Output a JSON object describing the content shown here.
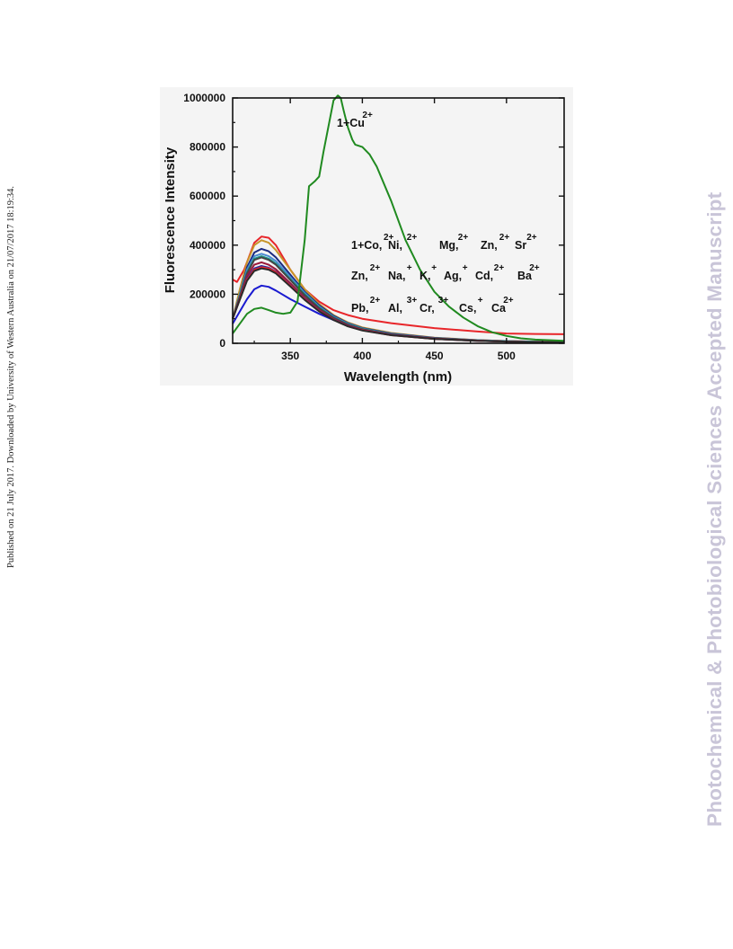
{
  "side_note": "Published on 21 July 2017. Downloaded by University of Western Australia on 21/07/2017 18:19:34.",
  "watermark": {
    "text": "Photochemical & Photobiological Sciences Accepted Manuscript",
    "color": "#c9c5d8"
  },
  "chart_data": {
    "type": "line",
    "title": "",
    "xlabel": "Wavelength (nm)",
    "ylabel": "Fluorescence Intensity",
    "xlim": [
      310,
      540
    ],
    "ylim": [
      0,
      1000000
    ],
    "xticks": [
      350,
      400,
      450,
      500
    ],
    "yticks": [
      0,
      200000,
      400000,
      600000,
      800000,
      1000000
    ],
    "ytick_labels": [
      "0",
      "200000",
      "400000",
      "600000",
      "800000",
      "1000000"
    ],
    "grid": false,
    "annotations": [
      {
        "base": "1+Cu",
        "sup": "2+"
      },
      {
        "rows": [
          [
            [
              "1+Co,",
              "2+"
            ],
            [
              "Ni,",
              "2+"
            ],
            [
              "Mg,",
              "2+"
            ],
            [
              "Zn,",
              "2+"
            ],
            [
              "Sr",
              "2+"
            ]
          ],
          [
            [
              "Zn,",
              "2+"
            ],
            [
              "Na,",
              "+"
            ],
            [
              "K,",
              "+"
            ],
            [
              "Ag,",
              "+"
            ],
            [
              "Cd,",
              "2+"
            ],
            [
              "Ba",
              "2+"
            ]
          ],
          [
            [
              "Pb,",
              "2+"
            ],
            [
              "Al,",
              "3+"
            ],
            [
              "Cr,",
              "3+"
            ],
            [
              "Cs,",
              "+"
            ],
            [
              "Ca",
              "2+"
            ]
          ]
        ]
      }
    ],
    "series": [
      {
        "color": "#e8262a",
        "x": [
          310,
          313,
          318,
          325,
          330,
          335,
          340,
          350,
          360,
          370,
          380,
          390,
          400,
          420,
          450,
          480,
          500,
          520,
          540
        ],
        "y": [
          260000,
          250000,
          300000,
          410000,
          435000,
          430000,
          400000,
          300000,
          220000,
          170000,
          135000,
          115000,
          100000,
          82000,
          62000,
          48000,
          40000,
          38000,
          37000
        ]
      },
      {
        "color": "#1a1ad0",
        "x": [
          310,
          315,
          320,
          325,
          330,
          335,
          340,
          350,
          360,
          370,
          380,
          390,
          400,
          420,
          450,
          480,
          500,
          520,
          540
        ],
        "y": [
          80000,
          130000,
          180000,
          220000,
          235000,
          230000,
          215000,
          180000,
          150000,
          120000,
          95000,
          75000,
          60000,
          40000,
          22000,
          13000,
          9000,
          7000,
          6000
        ]
      },
      {
        "color": "#c8962a",
        "x": [
          310,
          315,
          320,
          325,
          330,
          335,
          340,
          350,
          360,
          370,
          380,
          390,
          400,
          420,
          450,
          480,
          500,
          520,
          540
        ],
        "y": [
          100000,
          220000,
          330000,
          400000,
          420000,
          410000,
          380000,
          300000,
          220000,
          160000,
          115000,
          85000,
          65000,
          42000,
          23000,
          13000,
          9000,
          7000,
          6000
        ]
      },
      {
        "color": "#1a2a80",
        "x": [
          310,
          315,
          320,
          325,
          330,
          335,
          340,
          350,
          360,
          370,
          380,
          390,
          400,
          420,
          450,
          480,
          500,
          520,
          540
        ],
        "y": [
          100000,
          200000,
          310000,
          370000,
          385000,
          375000,
          350000,
          280000,
          210000,
          155000,
          112000,
          82000,
          62000,
          40000,
          22000,
          12000,
          8000,
          6000,
          5000
        ]
      },
      {
        "color": "#4a8ad0",
        "x": [
          310,
          315,
          320,
          325,
          330,
          335,
          340,
          350,
          360,
          370,
          380,
          390,
          400,
          420,
          450,
          480,
          500,
          520,
          540
        ],
        "y": [
          100000,
          200000,
          300000,
          355000,
          365000,
          355000,
          335000,
          270000,
          205000,
          150000,
          108000,
          80000,
          60000,
          38000,
          21000,
          12000,
          8000,
          6000,
          5000
        ]
      },
      {
        "color": "#1a9a8a",
        "x": [
          310,
          315,
          320,
          325,
          330,
          335,
          340,
          350,
          360,
          370,
          380,
          390,
          400,
          420,
          450,
          480,
          500,
          520,
          540
        ],
        "y": [
          100000,
          195000,
          290000,
          345000,
          355000,
          345000,
          325000,
          262000,
          200000,
          146000,
          106000,
          78000,
          59000,
          37000,
          20000,
          12000,
          8000,
          6000,
          5000
        ]
      },
      {
        "color": "#444444",
        "x": [
          310,
          315,
          320,
          325,
          330,
          335,
          340,
          350,
          360,
          370,
          380,
          390,
          400,
          420,
          450,
          480,
          500,
          520,
          540
        ],
        "y": [
          100000,
          190000,
          285000,
          340000,
          350000,
          340000,
          320000,
          258000,
          196000,
          143000,
          104000,
          76000,
          57000,
          36000,
          20000,
          11000,
          7000,
          5000,
          4000
        ]
      },
      {
        "color": "#9a1a3a",
        "x": [
          310,
          315,
          320,
          325,
          330,
          335,
          340,
          350,
          360,
          370,
          380,
          390,
          400,
          420,
          450,
          480,
          500,
          520,
          540
        ],
        "y": [
          100000,
          185000,
          275000,
          320000,
          330000,
          320000,
          302000,
          245000,
          186000,
          136000,
          99000,
          73000,
          55000,
          35000,
          19000,
          11000,
          7000,
          5000,
          4000
        ]
      },
      {
        "color": "#2a2a9a",
        "x": [
          310,
          315,
          320,
          325,
          330,
          335,
          340,
          350,
          360,
          370,
          380,
          390,
          400,
          420,
          450,
          480,
          500,
          520,
          540
        ],
        "y": [
          100000,
          180000,
          265000,
          305000,
          315000,
          308000,
          292000,
          238000,
          182000,
          133000,
          97000,
          71000,
          54000,
          34000,
          18000,
          10000,
          7000,
          5000,
          4000
        ]
      },
      {
        "color": "#e8262a",
        "x": [
          310,
          315,
          320,
          325,
          330,
          335,
          340,
          350,
          360,
          370,
          380,
          390,
          400,
          420,
          450,
          480,
          500,
          520,
          540
        ],
        "y": [
          100000,
          180000,
          260000,
          300000,
          310000,
          305000,
          290000,
          236000,
          180000,
          132000,
          96000,
          70000,
          53000,
          33000,
          18000,
          10000,
          7000,
          5000,
          4000
        ]
      },
      {
        "color": "#2a2a2a",
        "x": [
          310,
          315,
          320,
          325,
          330,
          335,
          340,
          350,
          360,
          370,
          380,
          390,
          400,
          420,
          450,
          480,
          500,
          520,
          540
        ],
        "y": [
          100000,
          178000,
          255000,
          295000,
          305000,
          300000,
          285000,
          232000,
          177000,
          130000,
          95000,
          69000,
          52000,
          33000,
          18000,
          10000,
          7000,
          5000,
          4000
        ]
      },
      {
        "color": "#208a20",
        "x": [
          310,
          315,
          320,
          325,
          330,
          335,
          340,
          345,
          350,
          355,
          360,
          363,
          367,
          370,
          373,
          377,
          380,
          383,
          385,
          387,
          390,
          393,
          395,
          400,
          405,
          410,
          420,
          430,
          440,
          450,
          460,
          470,
          480,
          490,
          500,
          510,
          520,
          540
        ],
        "y": [
          40000,
          80000,
          120000,
          140000,
          145000,
          135000,
          125000,
          120000,
          125000,
          170000,
          420000,
          640000,
          660000,
          680000,
          780000,
          900000,
          990000,
          1010000,
          1000000,
          950000,
          880000,
          830000,
          810000,
          800000,
          770000,
          720000,
          580000,
          420000,
          300000,
          210000,
          150000,
          105000,
          70000,
          45000,
          30000,
          20000,
          15000,
          10000
        ]
      }
    ]
  }
}
